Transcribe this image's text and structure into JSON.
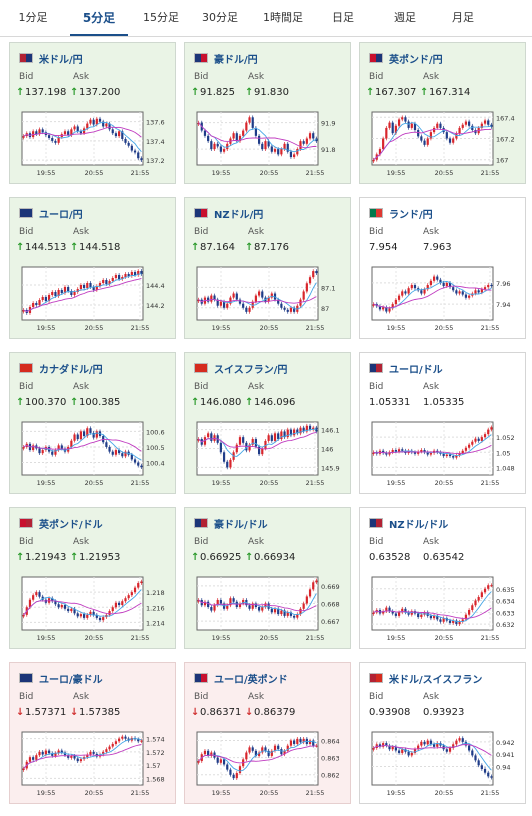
{
  "tabs": [
    {
      "label": "1分足",
      "active": false
    },
    {
      "label": "5分足",
      "active": true
    },
    {
      "label": "15分足",
      "active": false
    },
    {
      "label": "30分足",
      "active": false
    },
    {
      "label": "1時間足",
      "active": false
    },
    {
      "label": "日足",
      "active": false
    },
    {
      "label": "週足",
      "active": false
    },
    {
      "label": "月足",
      "active": false
    }
  ],
  "labels": {
    "bid": "Bid",
    "ask": "Ask"
  },
  "colors": {
    "bull": "#d8262c",
    "bear": "#1f3c88",
    "ma_short": "#45a6e6",
    "ma_long": "#c03cc0",
    "up_arrow": "#2c9a2c",
    "down_arrow": "#d03030",
    "link": "#1b4f8a"
  },
  "cards": [
    {
      "pair": "米ドル/円",
      "bid": "137.198",
      "ask": "137.200",
      "trend": "up",
      "flag": [
        "#b22234",
        "#1c3578"
      ],
      "chart_data": {
        "type": "candlestick",
        "xticks": [
          "19:55",
          "20:55",
          "21:55"
        ],
        "yticks": [
          "137.6",
          "137.4",
          "137.2"
        ],
        "ylim": [
          137.15,
          137.7
        ],
        "closes": [
          137.45,
          137.48,
          137.44,
          137.5,
          137.47,
          137.52,
          137.49,
          137.46,
          137.43,
          137.4,
          137.38,
          137.44,
          137.47,
          137.5,
          137.46,
          137.52,
          137.55,
          137.5,
          137.48,
          137.53,
          137.58,
          137.62,
          137.57,
          137.63,
          137.6,
          137.55,
          137.58,
          137.52,
          137.48,
          137.45,
          137.5,
          137.42,
          137.38,
          137.35,
          137.3,
          137.28,
          137.22,
          137.2
        ]
      }
    },
    {
      "pair": "豪ドル/円",
      "bid": "91.825",
      "ask": "91.830",
      "trend": "up",
      "flag": [
        "#1c3578",
        "#c8102e"
      ],
      "chart_data": {
        "type": "candlestick",
        "xticks": [
          "19:55",
          "20:55",
          "21:55"
        ],
        "yticks": [
          "91.9",
          "91.8"
        ],
        "ylim": [
          91.74,
          91.94
        ],
        "closes": [
          91.9,
          91.87,
          91.85,
          91.83,
          91.8,
          91.82,
          91.81,
          91.79,
          91.8,
          91.82,
          91.84,
          91.86,
          91.83,
          91.85,
          91.87,
          91.9,
          91.92,
          91.88,
          91.85,
          91.82,
          91.8,
          91.83,
          91.81,
          91.79,
          91.8,
          91.78,
          91.8,
          91.82,
          91.79,
          91.77,
          91.78,
          91.8,
          91.83,
          91.82,
          91.84,
          91.86,
          91.84,
          91.83
        ]
      }
    },
    {
      "pair": "英ポンド/円",
      "bid": "167.307",
      "ask": "167.314",
      "trend": "up",
      "flag": [
        "#c8102e",
        "#1c3578"
      ],
      "chart_data": {
        "type": "candlestick",
        "xticks": [
          "19:55",
          "20:55",
          "21:55"
        ],
        "yticks": [
          "167.4",
          "167.2",
          "167"
        ],
        "ylim": [
          166.95,
          167.45
        ],
        "closes": [
          167.0,
          167.05,
          167.1,
          167.2,
          167.3,
          167.35,
          167.25,
          167.32,
          167.38,
          167.4,
          167.36,
          167.3,
          167.34,
          167.28,
          167.22,
          167.18,
          167.14,
          167.2,
          167.26,
          167.3,
          167.34,
          167.3,
          167.26,
          167.2,
          167.16,
          167.2,
          167.25,
          167.3,
          167.33,
          167.36,
          167.32,
          167.28,
          167.25,
          167.3,
          167.34,
          167.37,
          167.33,
          167.31
        ]
      }
    },
    {
      "pair": "ユーロ/円",
      "bid": "144.513",
      "ask": "144.518",
      "trend": "up",
      "flag": [
        "#1c3578",
        "#1c3578"
      ],
      "chart_data": {
        "type": "candlestick",
        "xticks": [
          "19:55",
          "20:55",
          "21:55"
        ],
        "yticks": [
          "144.4",
          "144.2"
        ],
        "ylim": [
          144.05,
          144.58
        ],
        "closes": [
          144.15,
          144.12,
          144.18,
          144.22,
          144.2,
          144.25,
          144.28,
          144.24,
          144.3,
          144.33,
          144.29,
          144.35,
          144.32,
          144.38,
          144.34,
          144.3,
          144.33,
          144.36,
          144.4,
          144.37,
          144.42,
          144.38,
          144.35,
          144.39,
          144.42,
          144.45,
          144.41,
          144.44,
          144.47,
          144.5,
          144.46,
          144.48,
          144.51,
          144.49,
          144.53,
          144.5,
          144.54,
          144.51
        ]
      }
    },
    {
      "pair": "NZドル/円",
      "bid": "87.164",
      "ask": "87.176",
      "trend": "up",
      "flag": [
        "#1c3578",
        "#c8102e"
      ],
      "chart_data": {
        "type": "candlestick",
        "xticks": [
          "19:55",
          "20:55",
          "21:55"
        ],
        "yticks": [
          "87.1",
          "87"
        ],
        "ylim": [
          86.94,
          87.2
        ],
        "closes": [
          87.04,
          87.02,
          87.05,
          87.03,
          87.06,
          87.04,
          87.01,
          87.03,
          87.0,
          87.02,
          87.05,
          87.07,
          87.04,
          87.02,
          87.0,
          86.98,
          87.0,
          87.03,
          87.06,
          87.08,
          87.05,
          87.03,
          87.05,
          87.07,
          87.04,
          87.02,
          87.0,
          86.99,
          86.98,
          87.0,
          86.98,
          87.01,
          87.04,
          87.08,
          87.12,
          87.15,
          87.18,
          87.17
        ]
      }
    },
    {
      "pair": "ランド/円",
      "bid": "7.954",
      "ask": "7.963",
      "trend": "flat",
      "flag": [
        "#007a4d",
        "#de3831"
      ],
      "chart_data": {
        "type": "candlestick",
        "xticks": [
          "19:55",
          "20:55",
          "21:55"
        ],
        "yticks": [
          "7.96",
          "7.94"
        ],
        "ylim": [
          7.925,
          7.975
        ],
        "closes": [
          7.94,
          7.938,
          7.935,
          7.937,
          7.933,
          7.936,
          7.94,
          7.944,
          7.948,
          7.952,
          7.95,
          7.955,
          7.958,
          7.955,
          7.953,
          7.95,
          7.954,
          7.958,
          7.962,
          7.966,
          7.963,
          7.96,
          7.957,
          7.96,
          7.956,
          7.953,
          7.95,
          7.952,
          7.949,
          7.946,
          7.948,
          7.95,
          7.953,
          7.951,
          7.954,
          7.956,
          7.958,
          7.957
        ]
      }
    },
    {
      "pair": "カナダドル/円",
      "bid": "100.370",
      "ask": "100.385",
      "trend": "up",
      "flag": [
        "#d52b1e",
        "#d52b1e"
      ],
      "chart_data": {
        "type": "candlestick",
        "xticks": [
          "19:55",
          "20:55",
          "21:55"
        ],
        "yticks": [
          "100.6",
          "100.5",
          "100.4"
        ],
        "ylim": [
          100.32,
          100.66
        ],
        "closes": [
          100.5,
          100.52,
          100.48,
          100.51,
          100.49,
          100.46,
          100.48,
          100.5,
          100.47,
          100.45,
          100.48,
          100.51,
          100.49,
          100.47,
          100.5,
          100.54,
          100.58,
          100.55,
          100.6,
          100.57,
          100.62,
          100.59,
          100.56,
          100.6,
          100.57,
          100.53,
          100.5,
          100.47,
          100.45,
          100.48,
          100.46,
          100.44,
          100.47,
          100.45,
          100.42,
          100.4,
          100.38,
          100.37
        ]
      }
    },
    {
      "pair": "スイスフラン/円",
      "bid": "146.080",
      "ask": "146.096",
      "trend": "up",
      "flag": [
        "#d52b1e",
        "#d52b1e"
      ],
      "chart_data": {
        "type": "candlestick",
        "xticks": [
          "19:55",
          "20:55",
          "21:55"
        ],
        "yticks": [
          "146.1",
          "146",
          "145.9"
        ],
        "ylim": [
          145.86,
          146.14
        ],
        "closes": [
          146.05,
          146.02,
          146.06,
          146.08,
          146.04,
          146.07,
          146.03,
          145.98,
          145.93,
          145.9,
          145.94,
          145.98,
          146.02,
          146.06,
          146.03,
          145.99,
          146.02,
          146.05,
          146.01,
          145.97,
          146.0,
          146.04,
          146.07,
          146.04,
          146.08,
          146.05,
          146.09,
          146.06,
          146.1,
          146.07,
          146.1,
          146.08,
          146.11,
          146.09,
          146.12,
          146.1,
          146.11,
          146.09
        ]
      }
    },
    {
      "pair": "ユーロ/ドル",
      "bid": "1.05331",
      "ask": "1.05335",
      "trend": "flat",
      "flag": [
        "#1c3578",
        "#b22234"
      ],
      "chart_data": {
        "type": "candlestick",
        "xticks": [
          "19:55",
          "20:55",
          "21:55"
        ],
        "yticks": [
          "1.052",
          "1.05",
          "1.048"
        ],
        "ylim": [
          1.047,
          1.054
        ],
        "closes": [
          1.05,
          1.0498,
          1.0502,
          1.0499,
          1.0497,
          1.05,
          1.0503,
          1.0501,
          1.0504,
          1.0502,
          1.0499,
          1.0502,
          1.05,
          1.0498,
          1.0501,
          1.0503,
          1.05,
          1.0497,
          1.0499,
          1.0502,
          1.05,
          1.0498,
          1.0495,
          1.0497,
          1.0495,
          1.0493,
          1.0496,
          1.0499,
          1.0502,
          1.0506,
          1.051,
          1.0514,
          1.0518,
          1.0515,
          1.052,
          1.0524,
          1.053,
          1.0533
        ]
      }
    },
    {
      "pair": "英ポンド/ドル",
      "bid": "1.21943",
      "ask": "1.21953",
      "trend": "up",
      "flag": [
        "#c8102e",
        "#b22234"
      ],
      "chart_data": {
        "type": "candlestick",
        "xticks": [
          "19:55",
          "20:55",
          "21:55"
        ],
        "yticks": [
          "1.218",
          "1.216",
          "1.214"
        ],
        "ylim": [
          1.213,
          1.22
        ],
        "closes": [
          1.215,
          1.216,
          1.217,
          1.2176,
          1.218,
          1.2174,
          1.217,
          1.2166,
          1.2172,
          1.2168,
          1.2164,
          1.216,
          1.2163,
          1.2158,
          1.2155,
          1.2158,
          1.2152,
          1.2148,
          1.2151,
          1.2146,
          1.215,
          1.2154,
          1.215,
          1.2146,
          1.2143,
          1.2147,
          1.215,
          1.2155,
          1.216,
          1.2166,
          1.2163,
          1.2168,
          1.2172,
          1.2176,
          1.218,
          1.2186,
          1.2192,
          1.2194
        ]
      }
    },
    {
      "pair": "豪ドル/ドル",
      "bid": "0.66925",
      "ask": "0.66934",
      "trend": "up",
      "flag": [
        "#1c3578",
        "#b22234"
      ],
      "chart_data": {
        "type": "candlestick",
        "xticks": [
          "19:55",
          "20:55",
          "21:55"
        ],
        "yticks": [
          "0.669",
          "0.668",
          "0.667"
        ],
        "ylim": [
          0.6665,
          0.6695
        ],
        "closes": [
          0.6682,
          0.6679,
          0.6681,
          0.6678,
          0.6676,
          0.6679,
          0.6682,
          0.668,
          0.6677,
          0.6679,
          0.6683,
          0.6681,
          0.6678,
          0.668,
          0.6682,
          0.6679,
          0.6677,
          0.668,
          0.6678,
          0.6676,
          0.6678,
          0.668,
          0.6677,
          0.6675,
          0.6677,
          0.6674,
          0.6676,
          0.6673,
          0.6675,
          0.6673,
          0.6672,
          0.6674,
          0.6677,
          0.668,
          0.6684,
          0.6688,
          0.6692,
          0.6693
        ]
      }
    },
    {
      "pair": "NZドル/ドル",
      "bid": "0.63528",
      "ask": "0.63542",
      "trend": "flat",
      "flag": [
        "#1c3578",
        "#b22234"
      ],
      "chart_data": {
        "type": "candlestick",
        "xticks": [
          "19:55",
          "20:55",
          "21:55"
        ],
        "yticks": [
          "0.635",
          "0.634",
          "0.633",
          "0.632"
        ],
        "ylim": [
          0.6315,
          0.636
        ],
        "closes": [
          0.633,
          0.6332,
          0.6329,
          0.6331,
          0.6334,
          0.6331,
          0.6329,
          0.6327,
          0.633,
          0.6333,
          0.633,
          0.6328,
          0.6331,
          0.6329,
          0.6326,
          0.6328,
          0.633,
          0.6327,
          0.6325,
          0.6327,
          0.6324,
          0.6322,
          0.6325,
          0.6323,
          0.6321,
          0.6323,
          0.632,
          0.6322,
          0.6324,
          0.6328,
          0.6332,
          0.6336,
          0.634,
          0.6343,
          0.6347,
          0.635,
          0.6353,
          0.6353
        ]
      }
    },
    {
      "pair": "ユーロ/豪ドル",
      "bid": "1.57371",
      "ask": "1.57385",
      "trend": "down",
      "flag": [
        "#1c3578",
        "#1c3578"
      ],
      "chart_data": {
        "type": "candlestick",
        "xticks": [
          "19:55",
          "20:55",
          "21:55"
        ],
        "yticks": [
          "1.574",
          "1.572",
          "1.57",
          "1.568"
        ],
        "ylim": [
          1.567,
          1.575
        ],
        "closes": [
          1.5695,
          1.5705,
          1.5712,
          1.5708,
          1.5715,
          1.572,
          1.5716,
          1.5722,
          1.5718,
          1.5714,
          1.5718,
          1.5722,
          1.5719,
          1.5715,
          1.5711,
          1.5714,
          1.571,
          1.5706,
          1.5709,
          1.5712,
          1.5716,
          1.572,
          1.5717,
          1.5713,
          1.5716,
          1.572,
          1.5724,
          1.5728,
          1.5732,
          1.5736,
          1.574,
          1.5743,
          1.574,
          1.5737,
          1.5741,
          1.5739,
          1.5736,
          1.5737
        ]
      }
    },
    {
      "pair": "ユーロ/英ポンド",
      "bid": "0.86371",
      "ask": "0.86379",
      "trend": "down",
      "flag": [
        "#1c3578",
        "#c8102e"
      ],
      "chart_data": {
        "type": "candlestick",
        "xticks": [
          "19:55",
          "20:55",
          "21:55"
        ],
        "yticks": [
          "0.864",
          "0.863",
          "0.862"
        ],
        "ylim": [
          0.8614,
          0.8645
        ],
        "closes": [
          0.8628,
          0.8632,
          0.8634,
          0.8631,
          0.8633,
          0.863,
          0.8627,
          0.8629,
          0.8626,
          0.8623,
          0.862,
          0.8618,
          0.8621,
          0.8625,
          0.8629,
          0.8633,
          0.8636,
          0.8634,
          0.8631,
          0.8633,
          0.8636,
          0.8634,
          0.8631,
          0.8634,
          0.8637,
          0.8635,
          0.8632,
          0.8634,
          0.8637,
          0.864,
          0.8638,
          0.8641,
          0.8639,
          0.8641,
          0.8638,
          0.864,
          0.8637,
          0.8637
        ]
      }
    },
    {
      "pair": "米ドル/スイスフラン",
      "bid": "0.93908",
      "ask": "0.93923",
      "trend": "flat",
      "flag": [
        "#b22234",
        "#d52b1e"
      ],
      "chart_data": {
        "type": "candlestick",
        "xticks": [
          "19:55",
          "20:55",
          "21:55"
        ],
        "yticks": [
          "0.942",
          "0.941",
          "0.94"
        ],
        "ylim": [
          0.9385,
          0.9428
        ],
        "closes": [
          0.9415,
          0.9418,
          0.9416,
          0.9419,
          0.9417,
          0.9414,
          0.9416,
          0.9413,
          0.9411,
          0.9414,
          0.9412,
          0.9409,
          0.9411,
          0.9414,
          0.9417,
          0.942,
          0.9418,
          0.9421,
          0.9418,
          0.9416,
          0.9419,
          0.9417,
          0.9414,
          0.9412,
          0.9415,
          0.9418,
          0.9421,
          0.9423,
          0.942,
          0.9417,
          0.9413,
          0.9409,
          0.9405,
          0.9401,
          0.9398,
          0.9395,
          0.9392,
          0.9391
        ]
      }
    }
  ]
}
